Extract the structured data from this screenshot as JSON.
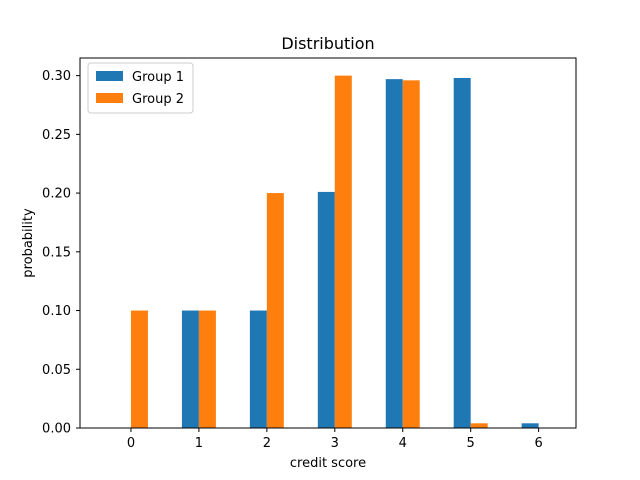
{
  "chart_data": {
    "type": "bar",
    "title": "Distribution",
    "xlabel": "credit score",
    "ylabel": "probability",
    "categories": [
      "0",
      "1",
      "2",
      "3",
      "4",
      "5",
      "6"
    ],
    "x": [
      0,
      1,
      2,
      3,
      4,
      5,
      6
    ],
    "ylim": [
      0,
      0.315
    ],
    "xlim": [
      -0.75,
      6.55
    ],
    "yticks": [
      "0.00",
      "0.05",
      "0.10",
      "0.15",
      "0.20",
      "0.25",
      "0.30"
    ],
    "ytick_values": [
      0,
      0.05,
      0.1,
      0.15,
      0.2,
      0.25,
      0.3
    ],
    "series": [
      {
        "name": "Group 1",
        "color": "#1f77b4",
        "values": [
          0.0,
          0.1,
          0.1,
          0.201,
          0.297,
          0.298,
          0.004
        ]
      },
      {
        "name": "Group 2",
        "color": "#ff7f0e",
        "values": [
          0.1,
          0.1,
          0.2,
          0.3,
          0.296,
          0.004,
          0.0
        ]
      }
    ],
    "grid": false,
    "legend_position": "top-left"
  }
}
